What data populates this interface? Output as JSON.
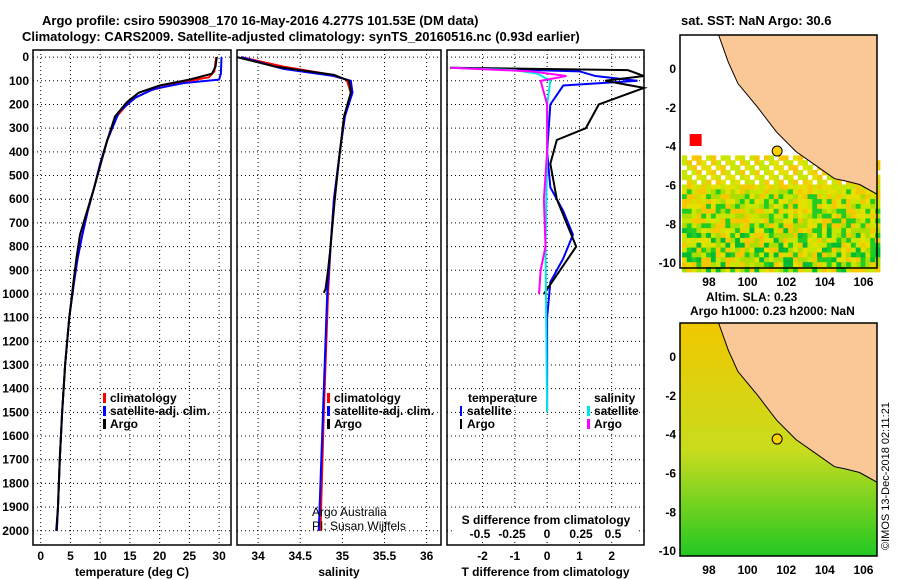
{
  "header": {
    "line1": "Argo profile: csiro 5903908_170 16-May-2016 4.277S 101.53E (DM data)",
    "line2": "Climatology: CARS2009. Satellite-adjusted climatology: synTS_20160516.nc (0.93d earlier)"
  },
  "colors": {
    "argo": "#000000",
    "climatology": "#ff0000",
    "satellite": "#0000ff",
    "sal_satellite": "#00e5e5",
    "sal_argo": "#ff00ff"
  },
  "chart_data": [
    {
      "type": "line",
      "name": "temperature",
      "xlabel": "temperature (deg C)",
      "xlim": [
        -1.3,
        32
      ],
      "ylim": [
        2060,
        -30
      ],
      "xticks": [
        0,
        5,
        10,
        15,
        20,
        25,
        30
      ],
      "yticks": [
        0,
        100,
        200,
        300,
        400,
        500,
        600,
        700,
        800,
        900,
        1000,
        1100,
        1200,
        1300,
        1400,
        1500,
        1600,
        1700,
        1800,
        1900,
        2000
      ],
      "legend": [
        "climatology",
        "satellite-adj. clim.",
        "Argo"
      ],
      "series": [
        {
          "name": "climatology",
          "color": "#ff0000",
          "points": [
            [
              0,
              29.5
            ],
            [
              60,
              29.2
            ],
            [
              85,
              28.3
            ],
            [
              110,
              23
            ],
            [
              140,
              18.5
            ],
            [
              180,
              15.2
            ],
            [
              250,
              12.8
            ],
            [
              350,
              11.2
            ],
            [
              450,
              10
            ],
            [
              550,
              9
            ],
            [
              650,
              7.9
            ],
            [
              750,
              7
            ],
            [
              850,
              6.2
            ],
            [
              950,
              5.6
            ],
            [
              1100,
              4.8
            ],
            [
              1300,
              4.1
            ],
            [
              1500,
              3.6
            ],
            [
              1700,
              3.2
            ],
            [
              1900,
              2.9
            ],
            [
              2000,
              2.7
            ]
          ]
        },
        {
          "name": "satellite-adj. clim.",
          "color": "#0000ff",
          "points": [
            [
              0,
              30.4
            ],
            [
              70,
              30.3
            ],
            [
              95,
              30
            ],
            [
              110,
              24
            ],
            [
              135,
              19
            ],
            [
              170,
              16
            ],
            [
              230,
              13.2
            ],
            [
              350,
              11.2
            ],
            [
              450,
              10
            ],
            [
              550,
              9
            ],
            [
              650,
              7.9
            ],
            [
              750,
              7
            ],
            [
              850,
              6.2
            ],
            [
              950,
              5.6
            ],
            [
              1100,
              4.8
            ],
            [
              1300,
              4.1
            ],
            [
              1500,
              3.6
            ],
            [
              1700,
              3.2
            ],
            [
              1900,
              2.9
            ],
            [
              2000,
              2.7
            ]
          ]
        },
        {
          "name": "Argo",
          "color": "#000000",
          "points": [
            [
              0,
              29.6
            ],
            [
              40,
              29.4
            ],
            [
              70,
              28.8
            ],
            [
              95,
              25
            ],
            [
              120,
              20
            ],
            [
              150,
              16.5
            ],
            [
              190,
              14.5
            ],
            [
              250,
              12.5
            ],
            [
              350,
              11.2
            ],
            [
              450,
              10.1
            ],
            [
              550,
              9
            ],
            [
              650,
              7.8
            ],
            [
              750,
              6.6
            ],
            [
              850,
              6
            ],
            [
              950,
              5.5
            ],
            [
              1100,
              4.8
            ],
            [
              1300,
              4.1
            ],
            [
              1500,
              3.6
            ],
            [
              1700,
              3.2
            ],
            [
              1900,
              2.9
            ],
            [
              2000,
              2.6
            ]
          ]
        }
      ]
    },
    {
      "type": "line",
      "name": "salinity",
      "xlabel": "salinity",
      "xlim": [
        33.75,
        36.17
      ],
      "ylim": [
        2060,
        -30
      ],
      "xticks": [
        34,
        34.5,
        35,
        35.5,
        36
      ],
      "legend": [
        "climatology",
        "satellite-adj. clim.",
        "Argo"
      ],
      "credit1": "Argo Australia",
      "credit2": "PI: Susan Wijffels",
      "series": [
        {
          "name": "climatology",
          "color": "#ff0000",
          "points": [
            [
              0,
              33.8
            ],
            [
              40,
              34.3
            ],
            [
              70,
              34.8
            ],
            [
              95,
              35.05
            ],
            [
              150,
              35.1
            ],
            [
              250,
              35.03
            ],
            [
              400,
              34.97
            ],
            [
              600,
              34.9
            ],
            [
              800,
              34.86
            ],
            [
              1000,
              34.83
            ],
            [
              1500,
              34.78
            ],
            [
              2000,
              34.74
            ]
          ]
        },
        {
          "name": "satellite-adj. clim.",
          "color": "#0000ff",
          "points": [
            [
              0,
              33.8
            ],
            [
              50,
              34.3
            ],
            [
              80,
              34.9
            ],
            [
              100,
              35.1
            ],
            [
              150,
              35.12
            ],
            [
              250,
              35.03
            ],
            [
              400,
              34.97
            ],
            [
              600,
              34.9
            ],
            [
              800,
              34.86
            ],
            [
              1000,
              34.82
            ],
            [
              1500,
              34.77
            ],
            [
              2000,
              34.72
            ]
          ]
        },
        {
          "name": "Argo",
          "color": "#000000",
          "points": [
            [
              0,
              33.75
            ],
            [
              40,
              34.2
            ],
            [
              75,
              34.9
            ],
            [
              100,
              35.08
            ],
            [
              150,
              35.1
            ],
            [
              250,
              35.02
            ],
            [
              400,
              34.97
            ],
            [
              600,
              34.91
            ],
            [
              800,
              34.86
            ],
            [
              900,
              34.83
            ],
            [
              980,
              34.8
            ],
            [
              995,
              34.78
            ]
          ]
        }
      ]
    },
    {
      "type": "line",
      "name": "difference",
      "xlabel": "T difference from climatology",
      "xlabel2": "S difference from climatology",
      "xlim": [
        -3.1,
        3.0
      ],
      "ylim": [
        2060,
        -30
      ],
      "xticks": [
        -2,
        -1,
        0,
        1,
        2
      ],
      "xticks2": [
        "-0.5",
        "-0.25",
        "0",
        "0.25",
        "0.5"
      ],
      "legend_t_title": "temperature",
      "legend_s_title": "salinity",
      "legend_t": [
        "satellite",
        "Argo"
      ],
      "legend_s": [
        "satellite",
        "Argo"
      ],
      "series": [
        {
          "name": "T satellite",
          "color": "#0000ff",
          "points": [
            [
              45,
              -3
            ],
            [
              60,
              1
            ],
            [
              80,
              1.5
            ],
            [
              100,
              2.8
            ],
            [
              120,
              0.5
            ],
            [
              200,
              0.1
            ],
            [
              400,
              0
            ],
            [
              550,
              0.1
            ],
            [
              650,
              0.5
            ],
            [
              750,
              0.8
            ],
            [
              850,
              0.5
            ],
            [
              950,
              0.1
            ],
            [
              1100,
              0
            ],
            [
              1500,
              0
            ]
          ]
        },
        {
          "name": "T Argo",
          "color": "#000000",
          "points": [
            [
              45,
              -3
            ],
            [
              55,
              2.5
            ],
            [
              80,
              3
            ],
            [
              100,
              1.8
            ],
            [
              130,
              3
            ],
            [
              200,
              1.6
            ],
            [
              300,
              1.2
            ],
            [
              350,
              0.3
            ],
            [
              450,
              0.1
            ],
            [
              600,
              0.3
            ],
            [
              700,
              0.6
            ],
            [
              800,
              0.9
            ],
            [
              900,
              0.4
            ],
            [
              1000,
              -0.1
            ]
          ]
        },
        {
          "name": "S satellite",
          "color": "#00e5e5",
          "points": [
            [
              45,
              -3
            ],
            [
              55,
              -1
            ],
            [
              70,
              -0.3
            ],
            [
              100,
              0.1
            ],
            [
              200,
              0
            ],
            [
              400,
              0
            ],
            [
              800,
              -0.05
            ],
            [
              1500,
              0
            ]
          ]
        },
        {
          "name": "S Argo",
          "color": "#ff00ff",
          "points": [
            [
              45,
              -3
            ],
            [
              60,
              -0.5
            ],
            [
              80,
              0.6
            ],
            [
              100,
              -0.2
            ],
            [
              200,
              0
            ],
            [
              400,
              0
            ],
            [
              600,
              -0.1
            ],
            [
              800,
              -0.05
            ],
            [
              900,
              -0.2
            ],
            [
              1000,
              -0.25
            ]
          ]
        }
      ]
    }
  ],
  "maps": {
    "sst_title": "sat. SST: NaN Argo: 30.6",
    "sla_title1": "Altim. SLA: 0.23",
    "sla_title2": "Argo h1000: 0.23 h2000: NaN",
    "lon_ticks": [
      "98",
      "100",
      "102",
      "104",
      "106"
    ],
    "lat_ticks": [
      "0",
      "-2",
      "-4",
      "-6",
      "-8",
      "-10"
    ]
  },
  "footer": {
    "credit": "©IMOS 13-Dec-2018 02:11:21"
  }
}
